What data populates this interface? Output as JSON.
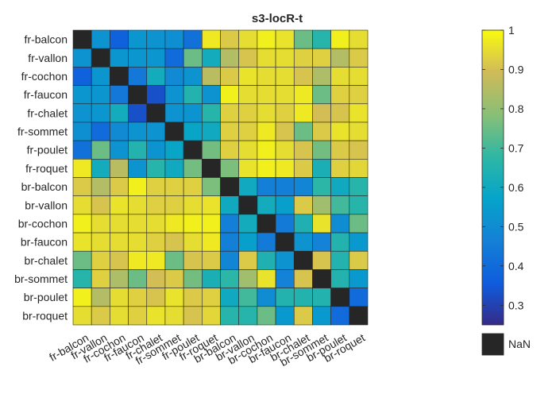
{
  "chart_data": {
    "type": "heatmap",
    "title": "s3-locR-t",
    "labels": [
      "fr-balcon",
      "fr-vallon",
      "fr-cochon",
      "fr-faucon",
      "fr-chalet",
      "fr-sommet",
      "fr-poulet",
      "fr-roquet",
      "br-balcon",
      "br-vallon",
      "br-cochon",
      "br-faucon",
      "br-chalet",
      "br-sommet",
      "br-poulet",
      "br-roquet"
    ],
    "matrix": [
      [
        null,
        0.52,
        0.37,
        0.53,
        0.52,
        0.51,
        0.42,
        0.97,
        0.92,
        0.95,
        0.98,
        0.96,
        0.75,
        0.66,
        0.98,
        0.95
      ],
      [
        0.52,
        null,
        0.53,
        0.53,
        0.53,
        0.4,
        0.75,
        0.61,
        0.85,
        0.91,
        0.95,
        0.95,
        0.93,
        0.93,
        0.85,
        0.92
      ],
      [
        0.37,
        0.53,
        null,
        0.44,
        0.61,
        0.49,
        0.52,
        0.86,
        0.92,
        0.96,
        0.95,
        0.95,
        0.91,
        0.84,
        0.95,
        0.95
      ],
      [
        0.53,
        0.53,
        0.44,
        null,
        0.33,
        0.52,
        0.65,
        0.52,
        0.98,
        0.95,
        0.95,
        0.95,
        0.97,
        0.75,
        0.93,
        0.93
      ],
      [
        0.52,
        0.53,
        0.61,
        0.33,
        null,
        0.52,
        0.52,
        0.66,
        0.93,
        0.93,
        0.95,
        0.93,
        0.97,
        0.9,
        0.91,
        0.96
      ],
      [
        0.51,
        0.4,
        0.49,
        0.52,
        0.52,
        null,
        0.58,
        0.6,
        0.93,
        0.93,
        0.97,
        0.91,
        0.75,
        0.92,
        0.96,
        0.95
      ],
      [
        0.42,
        0.75,
        0.52,
        0.65,
        0.52,
        0.58,
        null,
        0.76,
        0.93,
        0.95,
        0.98,
        0.95,
        0.91,
        0.76,
        0.92,
        0.91
      ],
      [
        0.97,
        0.61,
        0.86,
        0.52,
        0.66,
        0.6,
        0.76,
        null,
        0.77,
        0.96,
        0.98,
        0.97,
        0.92,
        0.63,
        0.93,
        0.94
      ],
      [
        0.92,
        0.85,
        0.92,
        0.98,
        0.93,
        0.93,
        0.93,
        0.77,
        null,
        0.6,
        0.46,
        0.46,
        0.48,
        0.67,
        0.6,
        0.66
      ],
      [
        0.95,
        0.91,
        0.96,
        0.95,
        0.93,
        0.93,
        0.95,
        0.96,
        0.6,
        null,
        0.61,
        0.56,
        0.92,
        0.82,
        0.7,
        0.66
      ],
      [
        0.98,
        0.95,
        0.95,
        0.95,
        0.95,
        0.97,
        0.98,
        0.98,
        0.46,
        0.61,
        null,
        0.45,
        0.64,
        0.96,
        0.5,
        0.75
      ],
      [
        0.96,
        0.95,
        0.95,
        0.95,
        0.93,
        0.91,
        0.95,
        0.97,
        0.46,
        0.56,
        0.45,
        null,
        0.52,
        0.47,
        0.65,
        0.54
      ],
      [
        0.75,
        0.93,
        0.91,
        0.97,
        0.97,
        0.75,
        0.91,
        0.92,
        0.48,
        0.92,
        0.64,
        0.52,
        null,
        0.91,
        0.65,
        0.92
      ],
      [
        0.66,
        0.93,
        0.84,
        0.75,
        0.9,
        0.92,
        0.76,
        0.63,
        0.67,
        0.82,
        0.96,
        0.47,
        0.91,
        null,
        0.65,
        0.54
      ],
      [
        0.98,
        0.85,
        0.95,
        0.93,
        0.91,
        0.96,
        0.92,
        0.93,
        0.6,
        0.7,
        0.5,
        0.65,
        0.65,
        0.65,
        null,
        0.4
      ],
      [
        0.95,
        0.92,
        0.95,
        0.93,
        0.96,
        0.95,
        0.91,
        0.94,
        0.66,
        0.66,
        0.75,
        0.54,
        0.92,
        0.54,
        0.4,
        null
      ]
    ],
    "colorbar": {
      "min": 0.25,
      "max": 1.0,
      "ticks": [
        "0.3",
        "0.4",
        "0.5",
        "0.6",
        "0.7",
        "0.8",
        "0.9",
        "1"
      ],
      "colormap": "parula",
      "nan_label": "NaN",
      "nan_color": "#262626"
    },
    "grid": true
  }
}
